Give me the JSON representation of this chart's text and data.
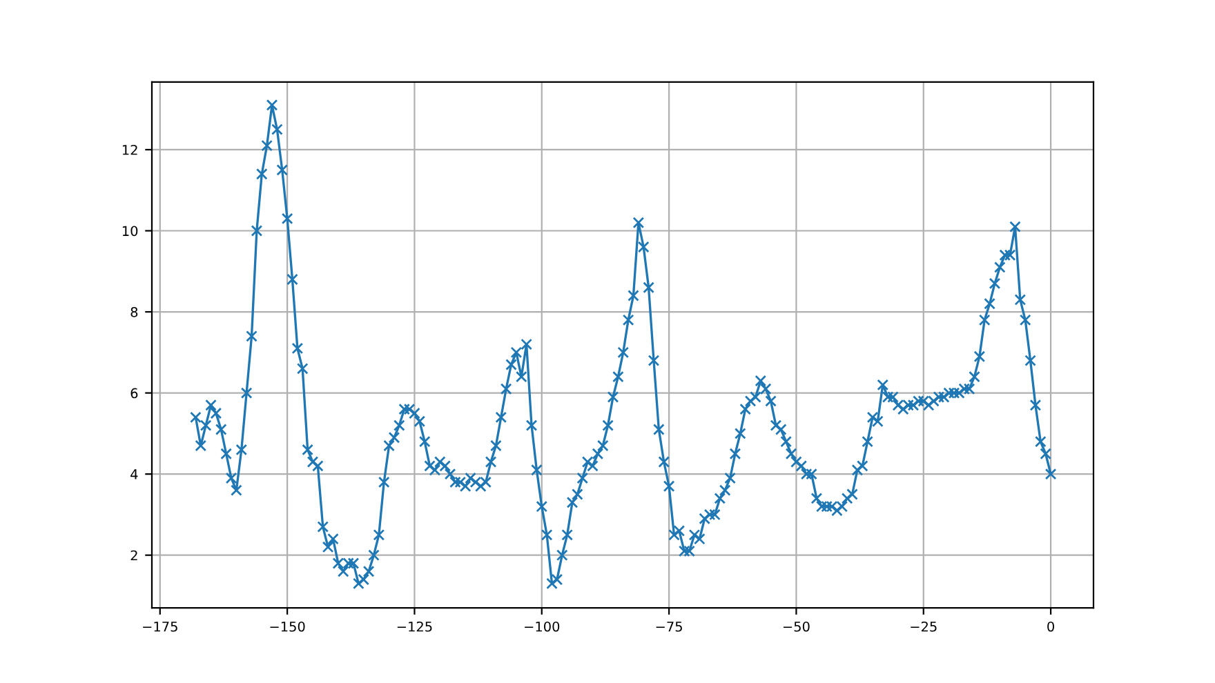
{
  "chart_data": {
    "type": "line",
    "x": [
      -168,
      -167,
      -166,
      -165,
      -164,
      -163,
      -162,
      -161,
      -160,
      -159,
      -158,
      -157,
      -156,
      -155,
      -154,
      -153,
      -152,
      -151,
      -150,
      -149,
      -148,
      -147,
      -146,
      -145,
      -144,
      -143,
      -142,
      -141,
      -140,
      -139,
      -138,
      -137,
      -136,
      -135,
      -134,
      -133,
      -132,
      -131,
      -130,
      -129,
      -128,
      -127,
      -126,
      -125,
      -124,
      -123,
      -122,
      -121,
      -120,
      -119,
      -118,
      -117,
      -116,
      -115,
      -114,
      -113,
      -112,
      -111,
      -110,
      -109,
      -108,
      -107,
      -106,
      -105,
      -104,
      -103,
      -102,
      -101,
      -100,
      -99,
      -98,
      -97,
      -96,
      -95,
      -94,
      -93,
      -92,
      -91,
      -90,
      -89,
      -88,
      -87,
      -86,
      -85,
      -84,
      -83,
      -82,
      -81,
      -80,
      -79,
      -78,
      -77,
      -76,
      -75,
      -74,
      -73,
      -72,
      -71,
      -70,
      -69,
      -68,
      -67,
      -66,
      -65,
      -64,
      -63,
      -62,
      -61,
      -60,
      -59,
      -58,
      -57,
      -56,
      -55,
      -54,
      -53,
      -52,
      -51,
      -50,
      -49,
      -48,
      -47,
      -46,
      -45,
      -44,
      -43,
      -42,
      -41,
      -40,
      -39,
      -38,
      -37,
      -36,
      -35,
      -34,
      -33,
      -32,
      -31,
      -30,
      -29,
      -28,
      -27,
      -26,
      -25,
      -24,
      -23,
      -22,
      -21,
      -20,
      -19,
      -18,
      -17,
      -16,
      -15,
      -14,
      -13,
      -12,
      -11,
      -10,
      -9,
      -8,
      -7,
      -6,
      -5,
      -4,
      -3,
      -2,
      -1,
      0
    ],
    "series": [
      {
        "color": "#1f77b4",
        "values": [
          5.4,
          4.7,
          5.2,
          5.7,
          5.5,
          5.1,
          4.5,
          3.9,
          3.6,
          4.6,
          6.0,
          7.4,
          10.0,
          11.4,
          12.1,
          13.1,
          12.5,
          11.5,
          10.3,
          8.8,
          7.1,
          6.6,
          4.6,
          4.3,
          4.2,
          2.7,
          2.2,
          2.4,
          1.8,
          1.6,
          1.8,
          1.8,
          1.3,
          1.4,
          1.6,
          2.0,
          2.5,
          3.8,
          4.7,
          4.9,
          5.2,
          5.6,
          5.6,
          5.5,
          5.3,
          4.8,
          4.2,
          4.1,
          4.3,
          4.2,
          4.0,
          3.8,
          3.8,
          3.7,
          3.9,
          3.8,
          3.7,
          3.8,
          4.3,
          4.7,
          5.4,
          6.1,
          6.7,
          7.0,
          6.4,
          7.2,
          5.2,
          4.1,
          3.2,
          2.5,
          1.3,
          1.4,
          2.0,
          2.5,
          3.3,
          3.5,
          3.9,
          4.3,
          4.2,
          4.5,
          4.7,
          5.2,
          5.9,
          6.4,
          7.0,
          7.8,
          8.4,
          10.2,
          9.6,
          8.6,
          6.8,
          5.1,
          4.3,
          3.7,
          2.5,
          2.6,
          2.1,
          2.1,
          2.5,
          2.4,
          2.9,
          3.0,
          3.0,
          3.4,
          3.6,
          3.9,
          4.5,
          5.0,
          5.6,
          5.8,
          5.9,
          6.3,
          6.1,
          5.8,
          5.2,
          5.1,
          4.8,
          4.5,
          4.3,
          4.2,
          4.0,
          4.0,
          3.4,
          3.2,
          3.2,
          3.2,
          3.1,
          3.2,
          3.4,
          3.5,
          4.1,
          4.2,
          4.8,
          5.4,
          5.3,
          6.2,
          5.9,
          5.9,
          5.7,
          5.6,
          5.7,
          5.7,
          5.8,
          5.8,
          5.7,
          5.8,
          5.9,
          5.9,
          6.0,
          6.0,
          6.0,
          6.1,
          6.1,
          6.4,
          6.9,
          7.8,
          8.2,
          8.7,
          9.1,
          9.4,
          9.4,
          10.1,
          8.3,
          7.8,
          6.8,
          5.7,
          4.8,
          4.5,
          4.0
        ]
      }
    ],
    "xlim": [
      -176.6,
      8.4
    ],
    "xticks": [
      {
        "value": -175,
        "label": "−175"
      },
      {
        "value": -150,
        "label": "−150"
      },
      {
        "value": -125,
        "label": "−125"
      },
      {
        "value": -100,
        "label": "−100"
      },
      {
        "value": -75,
        "label": "−75"
      },
      {
        "value": -50,
        "label": "−50"
      },
      {
        "value": -25,
        "label": "−25"
      },
      0
    ],
    "ylim": [
      0.7,
      13.67
    ],
    "yticks": [
      2,
      4,
      6,
      8,
      10,
      12
    ],
    "grid": true,
    "marker": "cross",
    "line_style": "solid",
    "legend": false
  }
}
